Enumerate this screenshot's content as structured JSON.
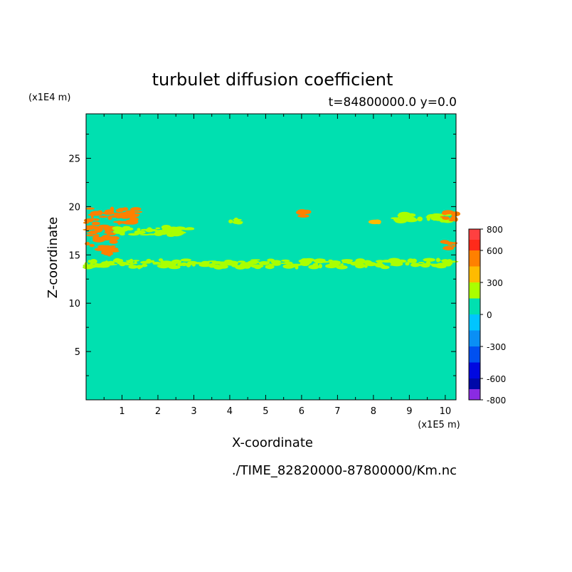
{
  "chart_data": {
    "type": "heatmap",
    "title": "turbulet diffusion coefficient",
    "subtitle": "t=84800000.0 y=0.0",
    "xlabel": "X-coordinate",
    "ylabel": "Z-coordinate",
    "x_unit": "(x1E5 m)",
    "y_unit": "(x1E4 m)",
    "xlim": [
      0,
      10.3
    ],
    "ylim": [
      0,
      29.6
    ],
    "x_ticks": [
      "1",
      "2",
      "3",
      "4",
      "5",
      "6",
      "7",
      "8",
      "9",
      "10"
    ],
    "y_ticks": [
      "5",
      "10",
      "15",
      "20",
      "25"
    ],
    "background_value_band": [
      0,
      150
    ],
    "colorbar": {
      "bounds": [
        -800,
        -700,
        -600,
        -450,
        -300,
        -150,
        0,
        150,
        300,
        450,
        600,
        700,
        800
      ],
      "colors": [
        "#8a2be2",
        "#0008a8",
        "#0008e0",
        "#0050f0",
        "#0a8ff5",
        "#00c5ff",
        "#00e0b0",
        "#aaff00",
        "#ffbb00",
        "#ff8000",
        "#ff2a1a",
        "#ff4040",
        "#ffaaaa"
      ],
      "labels": [
        "800",
        "600",
        "300",
        "0",
        "-300",
        "-600",
        "-800"
      ]
    },
    "features": [
      {
        "band": [
          450,
          600
        ],
        "x": [
          0.0,
          1.45
        ],
        "z": [
          18.2,
          19.8
        ]
      },
      {
        "band": [
          450,
          600
        ],
        "x": [
          0.0,
          0.8
        ],
        "z": [
          15.0,
          18.0
        ]
      },
      {
        "band": [
          150,
          300
        ],
        "x": [
          0.8,
          2.9
        ],
        "z": [
          17.0,
          17.9
        ]
      },
      {
        "band": [
          150,
          300
        ],
        "x": [
          0.0,
          10.3
        ],
        "z": [
          13.7,
          14.5
        ]
      },
      {
        "band": [
          150,
          300
        ],
        "x": [
          8.55,
          10.1
        ],
        "z": [
          18.4,
          19.3
        ]
      },
      {
        "band": [
          300,
          450
        ],
        "x": [
          8.0,
          8.15
        ],
        "z": [
          18.0,
          18.5
        ]
      },
      {
        "band": [
          450,
          600
        ],
        "x": [
          9.9,
          10.3
        ],
        "z": [
          18.5,
          19.6
        ]
      },
      {
        "band": [
          450,
          600
        ],
        "x": [
          9.95,
          10.3
        ],
        "z": [
          15.5,
          16.6
        ]
      },
      {
        "band": [
          450,
          600
        ],
        "x": [
          5.9,
          6.2
        ],
        "z": [
          19.0,
          19.6
        ]
      },
      {
        "band": [
          150,
          300
        ],
        "x": [
          3.9,
          4.4
        ],
        "z": [
          18.3,
          18.8
        ]
      }
    ]
  },
  "footer_path": "./TIME_82820000-87800000/Km.nc"
}
